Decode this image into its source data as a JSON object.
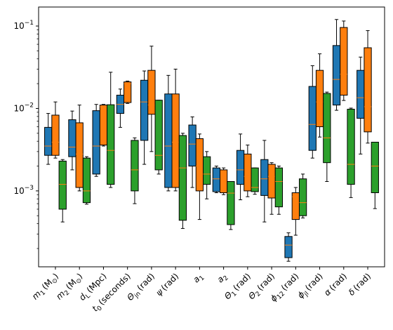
{
  "chart_data": {
    "type": "box",
    "yscale": "log",
    "ylim": [
      0.00012,
      0.17
    ],
    "yticks": [
      {
        "value": 0.001,
        "label": "10",
        "exp": "−3"
      },
      {
        "value": 0.01,
        "label": "10",
        "exp": "−2"
      },
      {
        "value": 0.1,
        "label": "10",
        "exp": "−1"
      }
    ],
    "categories": [
      {
        "base": "m",
        "sub": "1",
        "unit": "(M",
        "unitSub": "⊙",
        "unitEnd": ")"
      },
      {
        "base": "m",
        "sub": "2",
        "unit": "(M",
        "unitSub": "⊙",
        "unitEnd": ")"
      },
      {
        "base": "d",
        "sub": "L",
        "unit": "(Mpc)",
        "unitSub": "",
        "unitEnd": ""
      },
      {
        "base": "t",
        "sub": "0",
        "unit": "(seconds)",
        "unitSub": "",
        "unitEnd": ""
      },
      {
        "base": "Θ",
        "sub": "jn",
        "unit": "(rad)",
        "unitSub": "",
        "unitEnd": ""
      },
      {
        "base": "ψ",
        "sub": "",
        "unit": "(rad)",
        "unitSub": "",
        "unitEnd": ""
      },
      {
        "base": "a",
        "sub": "1",
        "unit": "",
        "unitSub": "",
        "unitEnd": ""
      },
      {
        "base": "a",
        "sub": "2",
        "unit": "",
        "unitSub": "",
        "unitEnd": ""
      },
      {
        "base": "Θ",
        "sub": "1",
        "unit": "(rad)",
        "unitSub": "",
        "unitEnd": ""
      },
      {
        "base": "Θ",
        "sub": "2",
        "unit": "(rad)",
        "unitSub": "",
        "unitEnd": ""
      },
      {
        "base": "ϕ",
        "sub": "12",
        "unit": "(rad)",
        "unitSub": "",
        "unitEnd": ""
      },
      {
        "base": "ϕ",
        "sub": "jl",
        "unit": "(rad)",
        "unitSub": "",
        "unitEnd": ""
      },
      {
        "base": "α",
        "sub": "",
        "unit": "(rad)",
        "unitSub": "",
        "unitEnd": ""
      },
      {
        "base": "δ",
        "sub": "",
        "unit": "(rad)",
        "unitSub": "",
        "unitEnd": ""
      }
    ],
    "series": [
      {
        "color": "#1f77b4",
        "boxes": [
          {
            "wl": 0.0021,
            "q1": 0.0027,
            "med": 0.0035,
            "q3": 0.0059,
            "wh": 0.0087
          },
          {
            "wl": 0.0018,
            "q1": 0.0026,
            "med": 0.0034,
            "q3": 0.0073,
            "wh": 0.0093
          },
          {
            "wl": 0.0015,
            "q1": 0.0016,
            "med": 0.0035,
            "q3": 0.0094,
            "wh": 0.0112
          },
          {
            "wl": 0.0059,
            "q1": 0.0087,
            "med": 0.0112,
            "q3": 0.0145,
            "wh": 0.0172
          },
          {
            "wl": 0.0021,
            "q1": 0.0041,
            "med": 0.012,
            "q3": 0.022,
            "wh": 0.0285
          },
          {
            "wl": 0.001,
            "q1": 0.0011,
            "med": 0.0035,
            "q3": 0.015,
            "wh": 0.0252
          },
          {
            "wl": 0.0011,
            "q1": 0.002,
            "med": 0.0037,
            "q3": 0.0063,
            "wh": 0.0079
          },
          {
            "wl": 0.00095,
            "q1": 0.00098,
            "med": 0.0014,
            "q3": 0.0019,
            "wh": 0.002
          },
          {
            "wl": 0.00078,
            "q1": 0.0012,
            "med": 0.0018,
            "q3": 0.0031,
            "wh": 0.0049
          },
          {
            "wl": 0.00042,
            "q1": 0.00088,
            "med": 0.0014,
            "q3": 0.0024,
            "wh": 0.0041
          },
          {
            "wl": 0.00014,
            "q1": 0.000155,
            "med": 0.00022,
            "q3": 0.00028,
            "wh": 0.00031
          },
          {
            "wl": 0.0025,
            "q1": 0.0031,
            "med": 0.0064,
            "q3": 0.0185,
            "wh": 0.033
          },
          {
            "wl": 0.0095,
            "q1": 0.011,
            "med": 0.0225,
            "q3": 0.058,
            "wh": 0.12
          },
          {
            "wl": 0.0028,
            "q1": 0.0076,
            "med": 0.0135,
            "q3": 0.029,
            "wh": 0.042
          }
        ]
      },
      {
        "color": "#ff7f0e",
        "boxes": [
          {
            "wl": 0.0025,
            "q1": 0.0027,
            "med": 0.0039,
            "q3": 0.0083,
            "wh": 0.012
          },
          {
            "wl": 0.001,
            "q1": 0.0011,
            "med": 0.0028,
            "q3": 0.0067,
            "wh": 0.011
          },
          {
            "wl": 0.0035,
            "q1": 0.0036,
            "med": 0.0105,
            "q3": 0.011,
            "wh": 0.0112
          },
          {
            "wl": 0.0115,
            "q1": 0.0118,
            "med": 0.02,
            "q3": 0.021,
            "wh": 0.0215
          },
          {
            "wl": 0.003,
            "q1": 0.0085,
            "med": 0.011,
            "q3": 0.029,
            "wh": 0.057
          },
          {
            "wl": 0.001,
            "q1": 0.0011,
            "med": 0.0039,
            "q3": 0.015,
            "wh": 0.03
          },
          {
            "wl": 0.00045,
            "q1": 0.001,
            "med": 0.002,
            "q3": 0.0043,
            "wh": 0.0049
          },
          {
            "wl": 0.0009,
            "q1": 0.00095,
            "med": 0.001,
            "q3": 0.0018,
            "wh": 0.0019
          },
          {
            "wl": 0.00085,
            "q1": 0.001,
            "med": 0.0015,
            "q3": 0.0028,
            "wh": 0.0036
          },
          {
            "wl": 0.00052,
            "q1": 0.00082,
            "med": 0.0015,
            "q3": 0.0021,
            "wh": 0.0022
          },
          {
            "wl": 0.00029,
            "q1": 0.00045,
            "med": 0.00085,
            "q3": 0.00095,
            "wh": 0.0011
          },
          {
            "wl": 0.0045,
            "q1": 0.006,
            "med": 0.012,
            "q3": 0.029,
            "wh": 0.046
          },
          {
            "wl": 0.0125,
            "q1": 0.0145,
            "med": 0.026,
            "q3": 0.096,
            "wh": 0.115
          },
          {
            "wl": 0.0038,
            "q1": 0.0052,
            "med": 0.0105,
            "q3": 0.0545,
            "wh": 0.088
          }
        ]
      },
      {
        "color": "#2ca02c",
        "boxes": [
          {
            "wl": 0.00042,
            "q1": 0.0006,
            "med": 0.0012,
            "q3": 0.0023,
            "wh": 0.0024
          },
          {
            "wl": 0.00069,
            "q1": 0.00072,
            "med": 0.001,
            "q3": 0.0025,
            "wh": 0.0026
          },
          {
            "wl": 0.0011,
            "q1": 0.0012,
            "med": 0.0031,
            "q3": 0.0111,
            "wh": 0.0275
          },
          {
            "wl": 0.0007,
            "q1": 0.001,
            "med": 0.0018,
            "q3": 0.0041,
            "wh": 0.0044
          },
          {
            "wl": 0.0016,
            "q1": 0.0018,
            "med": 0.0027,
            "q3": 0.0126,
            "wh": 0.0126
          },
          {
            "wl": 0.00035,
            "q1": 0.00044,
            "med": 0.0019,
            "q3": 0.0047,
            "wh": 0.005
          },
          {
            "wl": 0.0008,
            "q1": 0.0012,
            "med": 0.0016,
            "q3": 0.0026,
            "wh": 0.003
          },
          {
            "wl": 0.00034,
            "q1": 0.00039,
            "med": 0.00094,
            "q3": 0.0013,
            "wh": 0.0013
          },
          {
            "wl": 0.00091,
            "q1": 0.00098,
            "med": 0.0011,
            "q3": 0.0019,
            "wh": 0.0019
          },
          {
            "wl": 0.00052,
            "q1": 0.00064,
            "med": 0.0013,
            "q3": 0.0019,
            "wh": 0.002
          },
          {
            "wl": 0.00047,
            "q1": 0.0005,
            "med": 0.00072,
            "q3": 0.0014,
            "wh": 0.0016
          },
          {
            "wl": 0.0013,
            "q1": 0.0022,
            "med": 0.0044,
            "q3": 0.0152,
            "wh": 0.0158
          },
          {
            "wl": 0.00083,
            "q1": 0.0012,
            "med": 0.0021,
            "q3": 0.0098,
            "wh": 0.0101
          },
          {
            "wl": 0.00061,
            "q1": 0.00095,
            "med": 0.002,
            "q3": 0.0039,
            "wh": 0.0039
          }
        ]
      }
    ],
    "median_color": "#ff7f0e",
    "grid": false,
    "legend": false
  }
}
